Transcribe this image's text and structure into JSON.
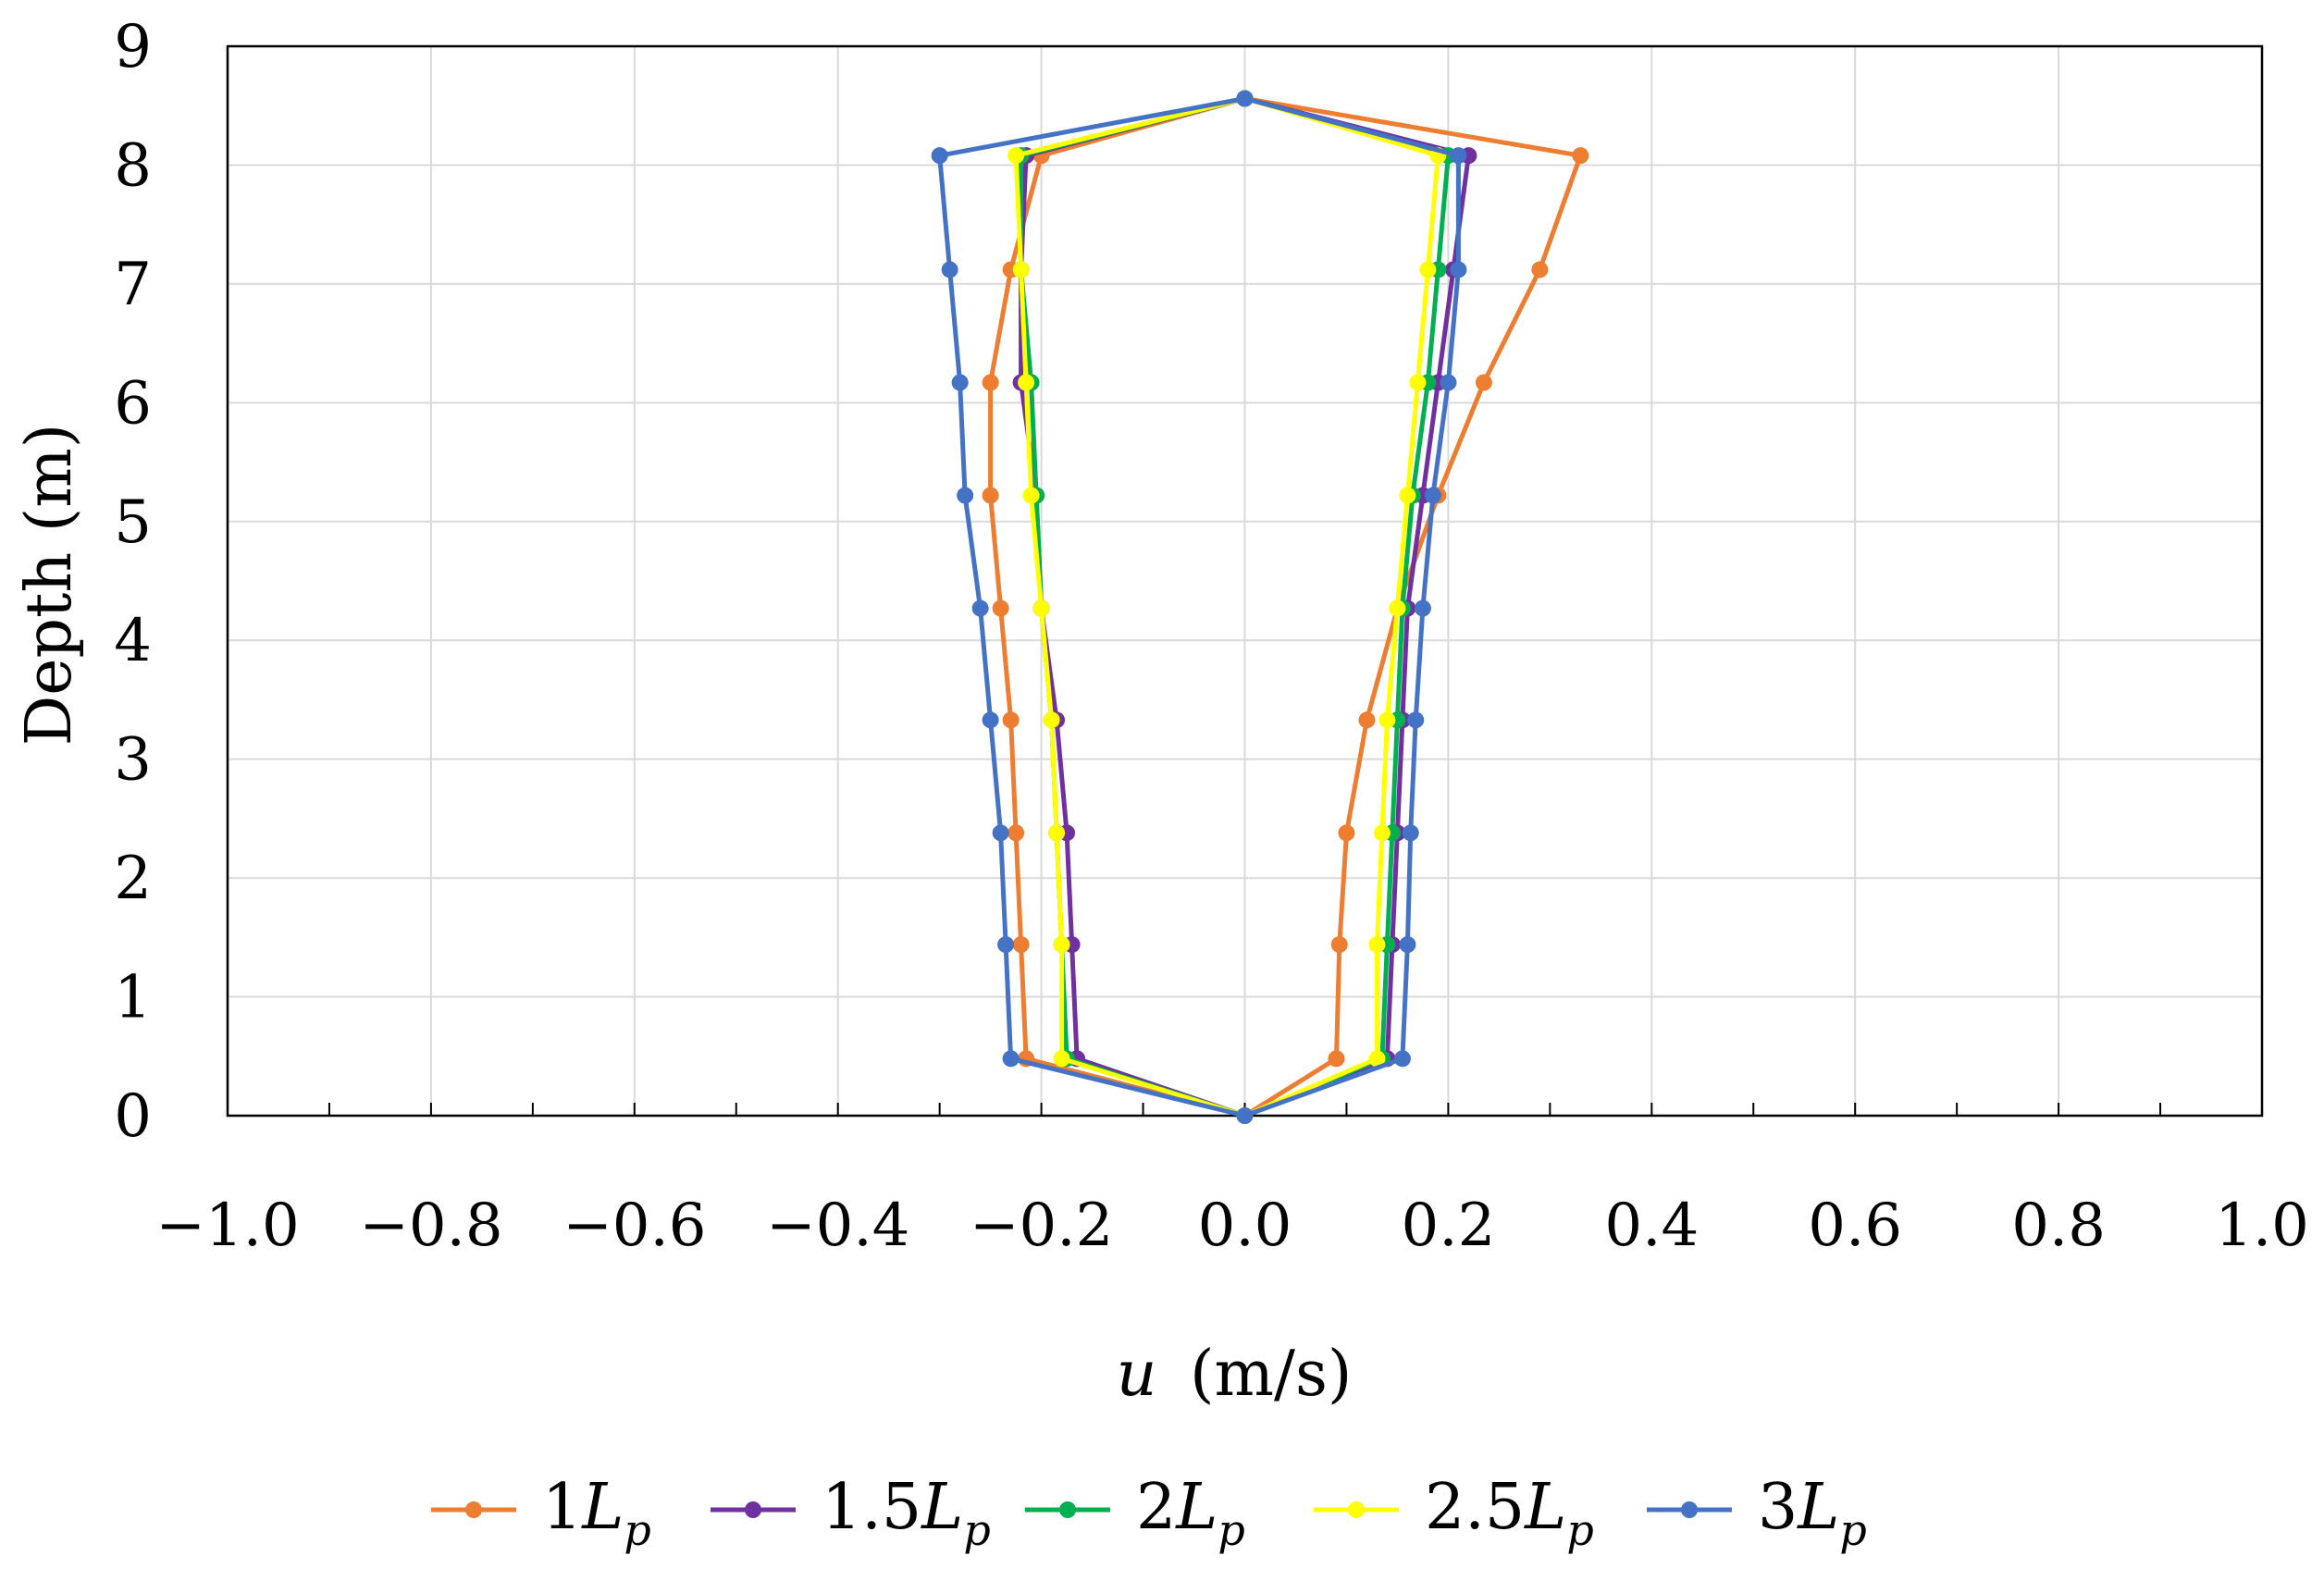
{
  "chart_data": {
    "type": "line",
    "xlabel_var": "u",
    "xlabel_unit": "(m/s)",
    "ylabel": "Depth (m)",
    "xlim": [
      -1.0,
      1.0
    ],
    "ylim": [
      0,
      9
    ],
    "x_ticks": [
      "−1.0",
      "−0.8",
      "−0.6",
      "−0.4",
      "−0.2",
      "0.0",
      "0.2",
      "0.4",
      "0.6",
      "0.8",
      "1.0"
    ],
    "y_ticks": [
      "0",
      "1",
      "2",
      "3",
      "4",
      "5",
      "6",
      "7",
      "8",
      "9"
    ],
    "grid": true,
    "legend_position": "bottom",
    "depths": [
      0,
      0.48,
      1.44,
      2.38,
      3.33,
      4.27,
      5.22,
      6.17,
      7.12,
      8.08,
      8.56
    ],
    "series": [
      {
        "name_base": "1",
        "name_sub": "p",
        "color": "#ED7D31",
        "left": [
          0,
          -0.215,
          -0.22,
          -0.225,
          -0.23,
          -0.24,
          -0.25,
          -0.25,
          -0.23,
          -0.2,
          0
        ],
        "right": [
          0,
          0.09,
          0.093,
          0.1,
          0.12,
          0.15,
          0.19,
          0.235,
          0.29,
          0.33,
          0
        ]
      },
      {
        "name_base": "1.5",
        "name_sub": "p",
        "color": "#7030A0",
        "left": [
          0,
          -0.165,
          -0.17,
          -0.175,
          -0.185,
          -0.2,
          -0.205,
          -0.22,
          -0.22,
          -0.215,
          0
        ],
        "right": [
          0,
          0.14,
          0.145,
          0.15,
          0.155,
          0.16,
          0.175,
          0.19,
          0.205,
          0.22,
          0
        ]
      },
      {
        "name_base": "2",
        "name_sub": "p",
        "color": "#00B050",
        "left": [
          0,
          -0.175,
          -0.18,
          -0.185,
          -0.19,
          -0.2,
          -0.205,
          -0.21,
          -0.22,
          -0.22,
          0
        ],
        "right": [
          0,
          0.135,
          0.14,
          0.145,
          0.15,
          0.155,
          0.165,
          0.18,
          0.19,
          0.2,
          0
        ]
      },
      {
        "name_base": "2.5",
        "name_sub": "p",
        "color": "#FFFF00",
        "left": [
          0,
          -0.18,
          -0.18,
          -0.185,
          -0.19,
          -0.2,
          -0.21,
          -0.215,
          -0.22,
          -0.225,
          0
        ],
        "right": [
          0,
          0.13,
          0.13,
          0.135,
          0.14,
          0.15,
          0.16,
          0.17,
          0.18,
          0.19,
          0
        ]
      },
      {
        "name_base": "3",
        "name_sub": "p",
        "color": "#4472C4",
        "left": [
          0,
          -0.23,
          -0.235,
          -0.24,
          -0.25,
          -0.26,
          -0.275,
          -0.28,
          -0.29,
          -0.3,
          0
        ],
        "right": [
          0,
          0.155,
          0.16,
          0.163,
          0.168,
          0.175,
          0.185,
          0.2,
          0.21,
          0.21,
          0
        ]
      }
    ],
    "legend_symbol": "L"
  }
}
